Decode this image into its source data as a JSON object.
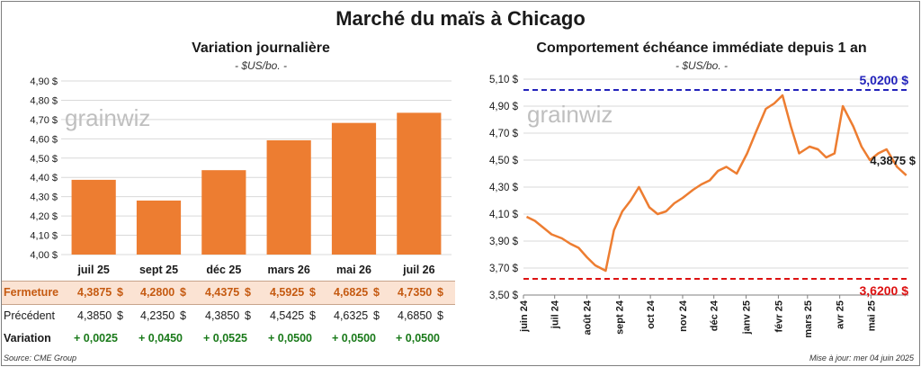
{
  "title": "Marché du maïs à Chicago",
  "left_chart": {
    "title": "Variation journalière",
    "subtitle": "- $US/bo. -",
    "watermark": "grainwiz"
  },
  "right_chart": {
    "title": "Comportement échéance immédiate depuis 1 an",
    "subtitle": "- $US/bo. -",
    "watermark": "grainwiz",
    "high_label": "5,0200 $",
    "low_label": "3,6200 $",
    "last_label": "4,3875 $"
  },
  "table": {
    "rows": [
      {
        "label": "Fermeture",
        "values": [
          "4,3875",
          "4,2800",
          "4,4375",
          "4,5925",
          "4,6825",
          "4,7350"
        ],
        "unit": "$"
      },
      {
        "label": "Précédent",
        "values": [
          "4,3850",
          "4,2350",
          "4,3850",
          "4,5425",
          "4,6325",
          "4,6850"
        ],
        "unit": "$"
      },
      {
        "label": "Variation",
        "values": [
          "+ 0,0025",
          "+ 0,0450",
          "+ 0,0525",
          "+ 0,0500",
          "+ 0,0500",
          "+ 0,0500"
        ],
        "unit": ""
      }
    ]
  },
  "footer": {
    "source": "Source: CME Group",
    "updated": "Mise à jour: mer 04 juin 2025"
  },
  "colors": {
    "bar": "#ed7d31",
    "line": "#ed7d31",
    "high": "#2222bb",
    "low": "#dd1111",
    "close_row_bg": "#fbe3d3",
    "variation": "#1a7a1a"
  },
  "chart_data": [
    {
      "type": "bar",
      "categories": [
        "juil 25",
        "sept 25",
        "déc 25",
        "mars 26",
        "mai 26",
        "juil 26"
      ],
      "values": [
        4.3875,
        4.28,
        4.4375,
        4.5925,
        4.6825,
        4.735
      ],
      "ylim": [
        4.0,
        4.9
      ],
      "yticks": [
        "4,00 $",
        "4,10 $",
        "4,20 $",
        "4,30 $",
        "4,40 $",
        "4,50 $",
        "4,60 $",
        "4,70 $",
        "4,80 $",
        "4,90 $"
      ],
      "grid": true
    },
    {
      "type": "line",
      "x_labels": [
        "juin 24",
        "juil 24",
        "août 24",
        "sept 24",
        "oct 24",
        "nov 24",
        "déc 24",
        "janv 25",
        "févr 25",
        "mars 25",
        "avr 25",
        "mai 25"
      ],
      "x": [
        "2024-06-04",
        "2024-06-12",
        "2024-06-20",
        "2024-06-28",
        "2024-07-08",
        "2024-07-16",
        "2024-07-24",
        "2024-08-01",
        "2024-08-09",
        "2024-08-19",
        "2024-08-27",
        "2024-09-04",
        "2024-09-12",
        "2024-09-20",
        "2024-09-30",
        "2024-10-08",
        "2024-10-16",
        "2024-10-24",
        "2024-11-01",
        "2024-11-11",
        "2024-11-19",
        "2024-11-27",
        "2024-12-05",
        "2024-12-13",
        "2024-12-23",
        "2025-01-02",
        "2025-01-10",
        "2025-01-20",
        "2025-01-28",
        "2025-02-05",
        "2025-02-13",
        "2025-02-21",
        "2025-03-03",
        "2025-03-11",
        "2025-03-19",
        "2025-03-27",
        "2025-04-04",
        "2025-04-14",
        "2025-04-22",
        "2025-04-30",
        "2025-05-08",
        "2025-05-16",
        "2025-05-26",
        "2025-06-04"
      ],
      "y": [
        4.08,
        4.05,
        4.0,
        3.95,
        3.92,
        3.88,
        3.85,
        3.78,
        3.72,
        3.68,
        3.98,
        4.12,
        4.2,
        4.3,
        4.15,
        4.1,
        4.12,
        4.18,
        4.22,
        4.28,
        4.32,
        4.35,
        4.42,
        4.45,
        4.4,
        4.55,
        4.7,
        4.88,
        4.92,
        4.98,
        4.75,
        4.55,
        4.6,
        4.58,
        4.52,
        4.55,
        4.9,
        4.75,
        4.6,
        4.5,
        4.55,
        4.58,
        4.45,
        4.3875
      ],
      "ylim": [
        3.5,
        5.1
      ],
      "yticks": [
        "3,50 $",
        "3,70 $",
        "3,90 $",
        "4,10 $",
        "4,30 $",
        "4,50 $",
        "4,70 $",
        "4,90 $",
        "5,10 $"
      ],
      "high": 5.02,
      "low": 3.62,
      "last": 4.3875
    }
  ]
}
